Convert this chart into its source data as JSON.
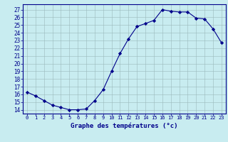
{
  "hours": [
    0,
    1,
    2,
    3,
    4,
    5,
    6,
    7,
    8,
    9,
    10,
    11,
    12,
    13,
    14,
    15,
    16,
    17,
    18,
    19,
    20,
    21,
    22,
    23
  ],
  "temperatures": [
    16.3,
    15.8,
    15.2,
    14.6,
    14.3,
    14.0,
    14.0,
    14.1,
    15.2,
    16.6,
    19.0,
    21.3,
    23.2,
    24.8,
    25.2,
    25.6,
    27.0,
    26.8,
    26.7,
    26.7,
    25.9,
    25.8,
    24.5,
    22.7
  ],
  "line_color": "#00008B",
  "marker": "D",
  "marker_size": 2.2,
  "bg_color": "#c8ecf0",
  "grid_color": "#9ab8bb",
  "xlabel": "Graphe des températures (°c)",
  "xlabel_color": "#00008B",
  "tick_color": "#00008B",
  "ylim": [
    13.5,
    27.7
  ],
  "yticks": [
    14,
    15,
    16,
    17,
    18,
    19,
    20,
    21,
    22,
    23,
    24,
    25,
    26,
    27
  ],
  "xlim": [
    -0.5,
    23.5
  ],
  "xticks": [
    0,
    1,
    2,
    3,
    4,
    5,
    6,
    7,
    8,
    9,
    10,
    11,
    12,
    13,
    14,
    15,
    16,
    17,
    18,
    19,
    20,
    21,
    22,
    23
  ]
}
